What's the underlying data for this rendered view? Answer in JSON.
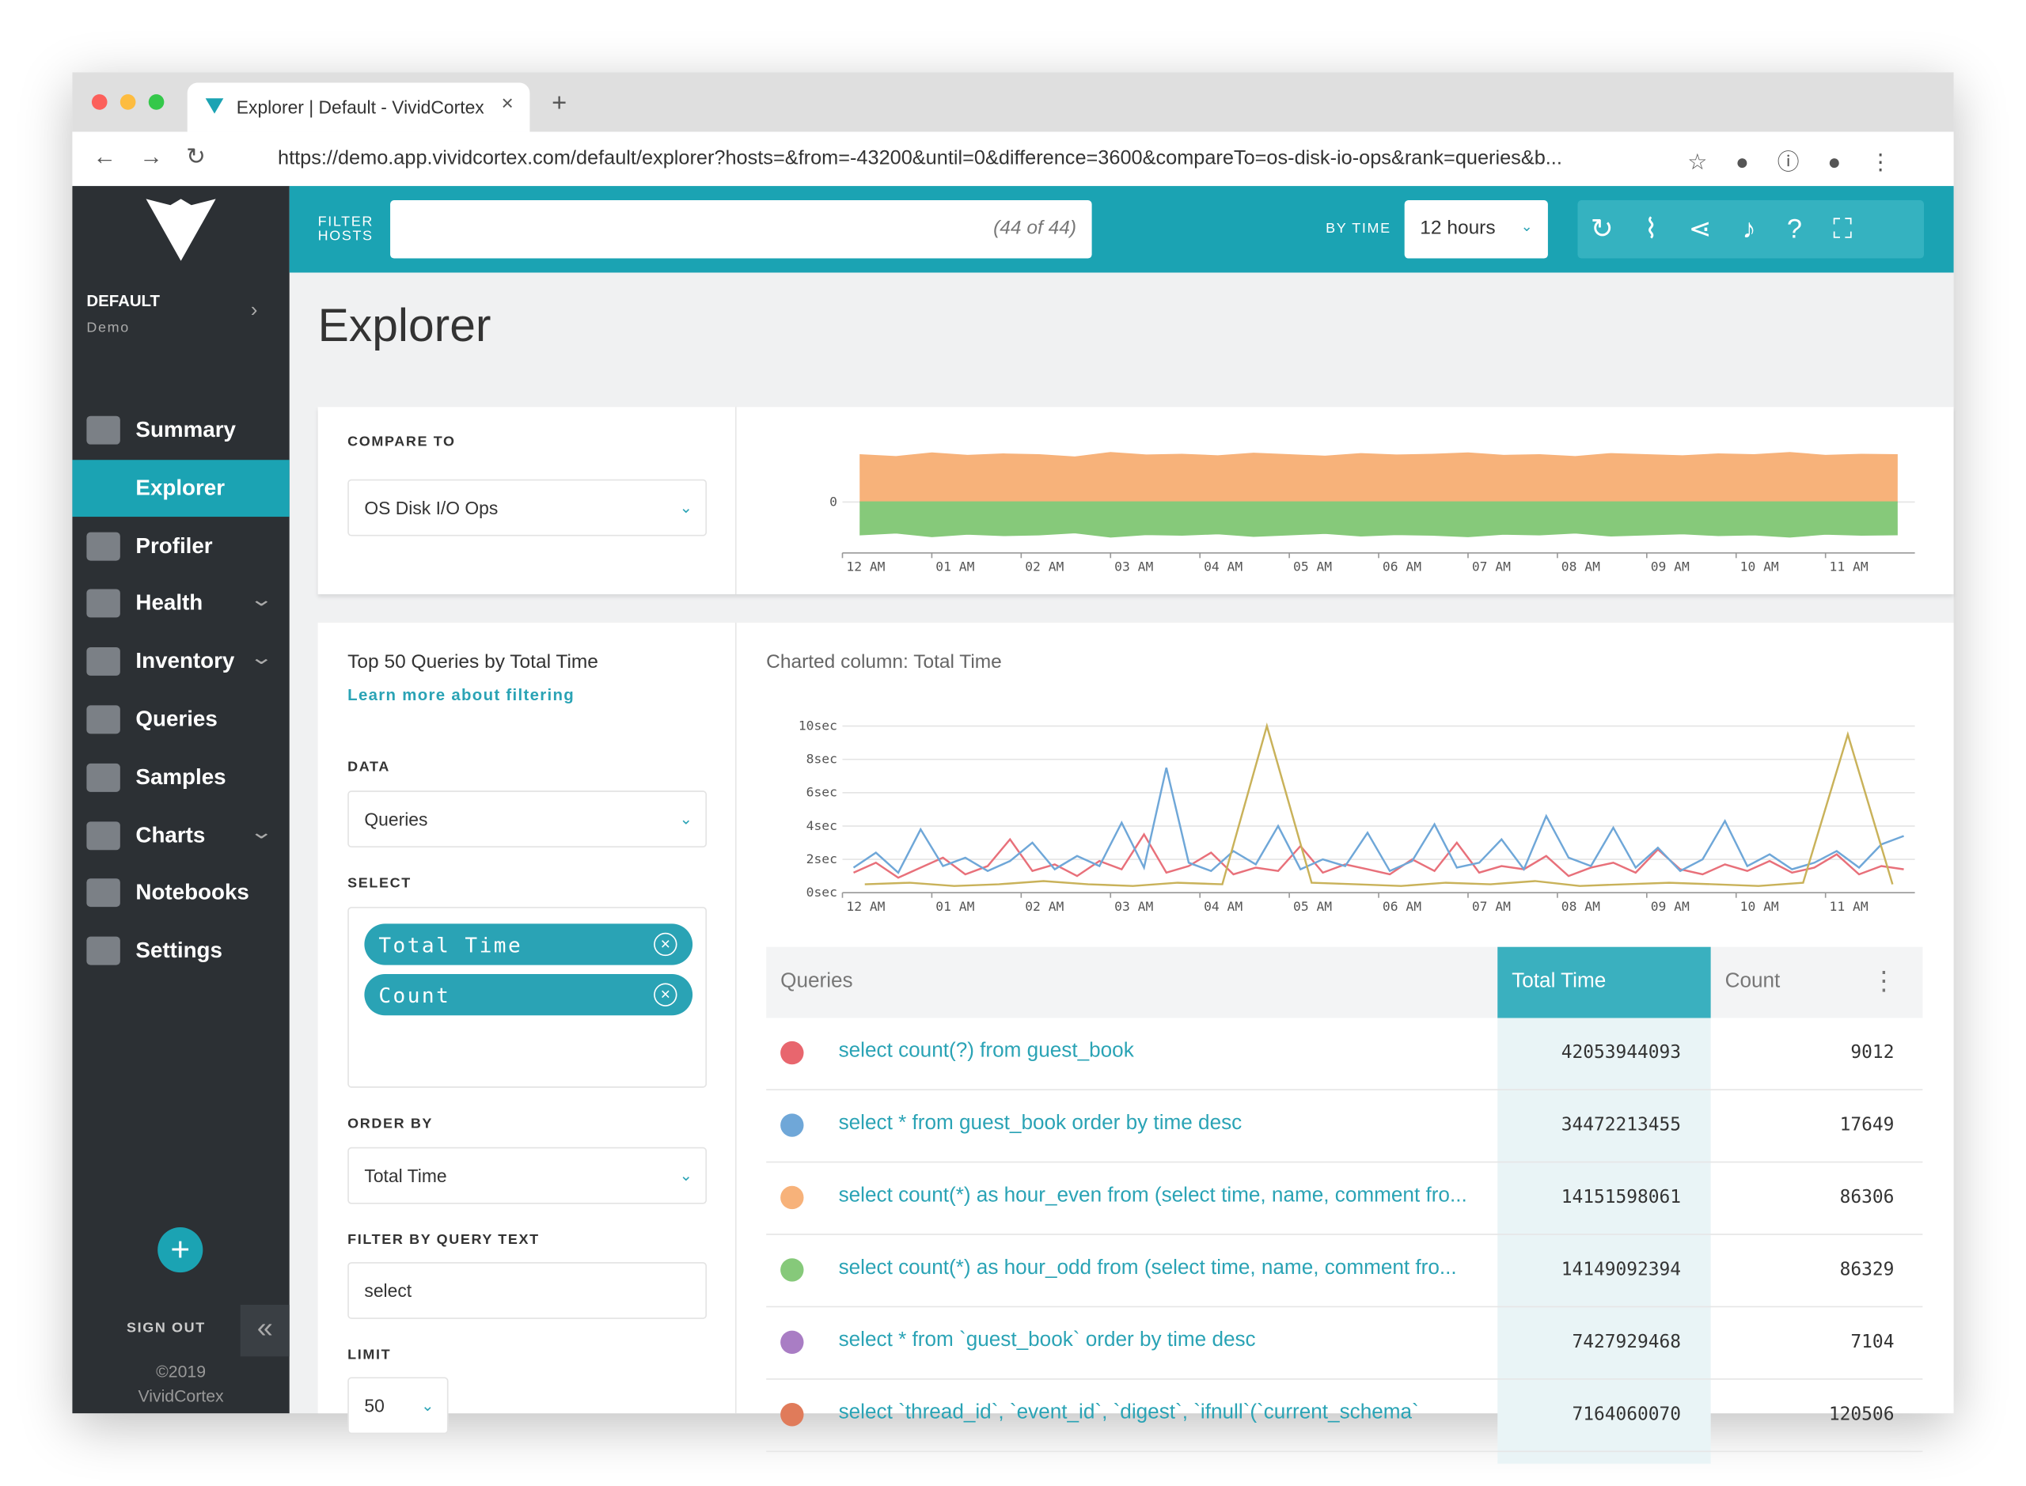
{
  "browser": {
    "tab_title": "Explorer | Default - VividCortex",
    "url": "https://demo.app.vividcortex.com/default/explorer?hosts=&from=-43200&until=0&difference=3600&compareTo=os-disk-io-ops&rank=queries&b..."
  },
  "sidebar": {
    "org": "DEFAULT",
    "env": "Demo",
    "active": 1,
    "nav": [
      {
        "label": "Summary",
        "expandable": false
      },
      {
        "label": "Explorer",
        "expandable": false
      },
      {
        "label": "Profiler",
        "expandable": false
      },
      {
        "label": "Health",
        "expandable": true
      },
      {
        "label": "Inventory",
        "expandable": true
      },
      {
        "label": "Queries",
        "expandable": false
      },
      {
        "label": "Samples",
        "expandable": false
      },
      {
        "label": "Charts",
        "expandable": true
      },
      {
        "label": "Notebooks",
        "expandable": false
      },
      {
        "label": "Settings",
        "expandable": false
      }
    ],
    "sign_out": "SIGN OUT",
    "copyright": "©2019",
    "company": "VividCortex"
  },
  "topbar": {
    "filter_label_1": "FILTER",
    "filter_label_2": "HOSTS",
    "filter_count": "(44 of 44)",
    "by_time": "BY TIME",
    "time": "12 hours"
  },
  "page": {
    "title": "Explorer"
  },
  "compare": {
    "label": "COMPARE TO",
    "value": "OS Disk I/O Ops",
    "chart": {
      "type": "area",
      "ylim": [
        -1.4,
        1.8
      ],
      "yticks": [
        0
      ],
      "xlim": [
        0,
        12
      ],
      "xticks": [
        {
          "value": 0,
          "label": "12 AM"
        },
        {
          "value": 1,
          "label": "01 AM"
        },
        {
          "value": 2,
          "label": "02 AM"
        },
        {
          "value": 3,
          "label": "03 AM"
        },
        {
          "value": 4,
          "label": "04 AM"
        },
        {
          "value": 5,
          "label": "05 AM"
        },
        {
          "value": 6,
          "label": "06 AM"
        },
        {
          "value": 7,
          "label": "07 AM"
        },
        {
          "value": 8,
          "label": "08 AM"
        },
        {
          "value": 9,
          "label": "09 AM"
        },
        {
          "value": 10,
          "label": "10 AM"
        },
        {
          "value": 11,
          "label": "11 AM"
        }
      ],
      "series": [
        {
          "color": "#f7b27a",
          "values": [
            1.3,
            1.25,
            1.35,
            1.28,
            1.32,
            1.3,
            1.24,
            1.36,
            1.29,
            1.31,
            1.27,
            1.34,
            1.3,
            1.26,
            1.33,
            1.29,
            1.31,
            1.35,
            1.28,
            1.3,
            1.25,
            1.33,
            1.3,
            1.27,
            1.32,
            1.3,
            1.36,
            1.28,
            1.31,
            1.3
          ]
        },
        {
          "color": "#86c97a",
          "values": [
            -0.9,
            -0.85,
            -0.95,
            -0.88,
            -0.92,
            -0.9,
            -0.84,
            -0.96,
            -0.89,
            -0.91,
            -0.87,
            -0.94,
            -0.9,
            -0.86,
            -0.93,
            -0.89,
            -0.91,
            -0.95,
            -0.88,
            -0.9,
            -0.85,
            -0.93,
            -0.9,
            -0.87,
            -0.92,
            -0.9,
            -0.96,
            -0.88,
            -0.91,
            -0.9
          ]
        }
      ]
    }
  },
  "queries": {
    "title": "Top 50 Queries by Total Time",
    "link": "Learn more about filtering",
    "data_label": "DATA",
    "data_value": "Queries",
    "select_label": "SELECT",
    "chips": [
      "Total Time",
      "Count"
    ],
    "order_label": "ORDER BY",
    "order_value": "Total Time",
    "filter_label": "FILTER BY QUERY TEXT",
    "filter_value": "select",
    "limit_label": "LIMIT",
    "limit_value": "50"
  },
  "charted": "Charted column: Total Time",
  "query_chart": {
    "type": "line",
    "ylim": [
      0,
      10
    ],
    "yticks": [
      {
        "value": 0,
        "label": "0sec"
      },
      {
        "value": 2,
        "label": "2sec"
      },
      {
        "value": 4,
        "label": "4sec"
      },
      {
        "value": 6,
        "label": "6sec"
      },
      {
        "value": 8,
        "label": "8sec"
      },
      {
        "value": 10,
        "label": "10sec"
      }
    ],
    "xlim": [
      0,
      12
    ],
    "xticks": [
      {
        "value": 0,
        "label": "12 AM"
      },
      {
        "value": 1,
        "label": "01 AM"
      },
      {
        "value": 2,
        "label": "02 AM"
      },
      {
        "value": 3,
        "label": "03 AM"
      },
      {
        "value": 4,
        "label": "04 AM"
      },
      {
        "value": 5,
        "label": "05 AM"
      },
      {
        "value": 6,
        "label": "06 AM"
      },
      {
        "value": 7,
        "label": "07 AM"
      },
      {
        "value": 8,
        "label": "08 AM"
      },
      {
        "value": 9,
        "label": "09 AM"
      },
      {
        "value": 10,
        "label": "10 AM"
      },
      {
        "value": 11,
        "label": "11 AM"
      }
    ],
    "series": [
      {
        "color": "#e8707a",
        "values": [
          1.2,
          1.8,
          0.9,
          1.5,
          2.1,
          1.1,
          1.6,
          3.2,
          1.3,
          1.7,
          1,
          1.9,
          1.4,
          3.5,
          1.2,
          1.6,
          2.4,
          1.1,
          1.5,
          1.3,
          2.8,
          1.2,
          1.7,
          1.4,
          1.1,
          2,
          1.3,
          3,
          1.2,
          1.6,
          1.4,
          2.2,
          1,
          1.5,
          1.8,
          1.2,
          2.6,
          1.4,
          1.1,
          1.7,
          1.3,
          1.9,
          1.2,
          1.5,
          2.3,
          1.1,
          1.6,
          1.4
        ]
      },
      {
        "color": "#6fa7d8",
        "values": [
          1.5,
          2.4,
          1.2,
          3.8,
          1.6,
          2.1,
          1.3,
          1.9,
          3,
          1.4,
          2.2,
          1.6,
          4.2,
          1.5,
          7.5,
          1.8,
          1.3,
          2.5,
          1.7,
          4,
          1.4,
          2,
          1.6,
          3.6,
          1.3,
          1.9,
          4.1,
          1.5,
          1.8,
          3.2,
          1.4,
          4.6,
          2.1,
          1.6,
          3.9,
          1.5,
          2.7,
          1.3,
          2,
          4.3,
          1.6,
          2.3,
          1.4,
          1.8,
          2.5,
          1.5,
          2.9,
          3.4
        ]
      },
      {
        "color": "#c9b25a",
        "values": [
          0.5,
          0.6,
          0.4,
          0.5,
          0.7,
          0.5,
          0.4,
          0.6,
          0.5,
          10,
          0.6,
          0.5,
          0.4,
          0.6,
          0.5,
          0.7,
          0.4,
          0.5,
          0.6,
          0.5,
          0.4,
          0.6,
          9.5,
          0.5
        ]
      }
    ]
  },
  "table": {
    "headers": [
      "Queries",
      "Total Time",
      "Count"
    ],
    "rows": [
      {
        "color": "#e8666e",
        "query": "select count(?) from guest_book",
        "total": 42053944093,
        "count": 9012
      },
      {
        "color": "#6fa7d8",
        "query": "select * from guest_book order by time desc",
        "total": 34472213455,
        "count": 17649
      },
      {
        "color": "#f7b27a",
        "query": "select count(*) as hour_even from (select time, name, comment fro...",
        "total": 14151598061,
        "count": 86306
      },
      {
        "color": "#86c97a",
        "query": "select count(*) as hour_odd from (select time, name, comment fro...",
        "total": 14149092394,
        "count": 86329
      },
      {
        "color": "#a97dc4",
        "query": "select * from `guest_book` order by time desc",
        "total": 7427929468,
        "count": 7104
      },
      {
        "color": "#e07b5a",
        "query": "select `thread_id`, `event_id`, `digest`, `ifnull`(`current_schema`",
        "total": 7164060070,
        "count": 120506
      }
    ]
  }
}
